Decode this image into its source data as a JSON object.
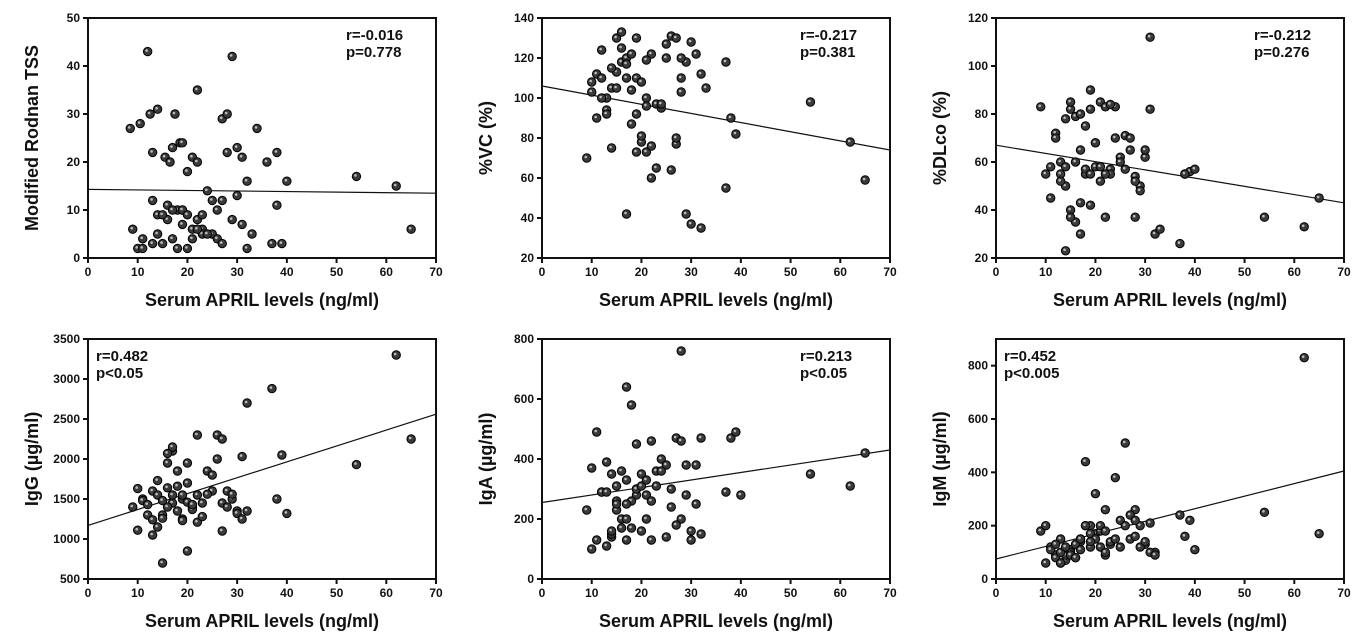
{
  "chart_data": [
    {
      "type": "scatter",
      "xlabel": "Serum APRIL levels (ng/ml)",
      "ylabel": "Modified Rodnan TSS",
      "xlim": [
        0,
        70
      ],
      "ylim": [
        0,
        50
      ],
      "xticks": [
        "0",
        "10",
        "20",
        "30",
        "40",
        "50",
        "60",
        "70"
      ],
      "yticks": [
        "0",
        "10",
        "20",
        "30",
        "40",
        "50"
      ],
      "annotation": [
        "r=-0.016",
        "p=0.778"
      ],
      "annotation_position": "top-right",
      "fit_line": [
        [
          0,
          14.3
        ],
        [
          70,
          13.5
        ]
      ],
      "x": [
        8.5,
        10.5,
        12.5,
        14,
        15.5,
        16.5,
        17.5,
        18.5,
        19,
        20,
        21,
        22,
        23,
        24,
        25,
        26,
        27,
        28,
        29,
        30,
        31,
        32,
        33,
        34,
        36,
        38,
        40,
        54,
        62,
        65,
        9,
        11,
        13,
        14,
        15,
        16,
        17,
        18,
        19,
        20,
        21,
        22,
        23,
        13,
        14,
        16,
        18,
        19,
        20,
        21,
        22,
        24,
        26,
        27,
        28,
        29,
        30,
        31,
        32,
        37,
        38,
        39,
        12,
        13,
        17,
        22,
        27,
        23,
        25,
        10,
        11,
        15,
        17,
        19
      ],
      "y": [
        27,
        28,
        30,
        31,
        21,
        20,
        30,
        24,
        10,
        18,
        21,
        20,
        6,
        14,
        5,
        10,
        29,
        30,
        8,
        23,
        21,
        16,
        5,
        27,
        20,
        22,
        16,
        17,
        15,
        6,
        6,
        4,
        3,
        5,
        3,
        8,
        4,
        2,
        7,
        2,
        4,
        8,
        5,
        12,
        9,
        11,
        10,
        10,
        9,
        6,
        6,
        5,
        4,
        3,
        22,
        42,
        13,
        7,
        2,
        3,
        11,
        3,
        43,
        22,
        23,
        35,
        12,
        9,
        12,
        2,
        2,
        9,
        10,
        24
      ]
    },
    {
      "type": "scatter",
      "xlabel": "Serum APRIL levels (ng/ml)",
      "ylabel": "%VC (%)",
      "xlim": [
        0,
        70
      ],
      "ylim": [
        20,
        140
      ],
      "xticks": [
        "0",
        "10",
        "20",
        "30",
        "40",
        "50",
        "60",
        "70"
      ],
      "yticks": [
        "20",
        "40",
        "60",
        "80",
        "100",
        "120",
        "140"
      ],
      "annotation": [
        "r=-0.217",
        "p=0.381"
      ],
      "annotation_position": "top-right",
      "fit_line": [
        [
          0,
          106
        ],
        [
          70,
          74
        ]
      ],
      "x": [
        9,
        10,
        11,
        12,
        13,
        14,
        15,
        16,
        17,
        18,
        19,
        20,
        21,
        22,
        23,
        24,
        25,
        26,
        27,
        28,
        29,
        30,
        31,
        32,
        37,
        38,
        39,
        54,
        62,
        65,
        10,
        12,
        13,
        14,
        15,
        16,
        17,
        18,
        19,
        20,
        21,
        22,
        23,
        24,
        25,
        26,
        27,
        28,
        12,
        13,
        14,
        15,
        16,
        17,
        18,
        19,
        20,
        21,
        22,
        28,
        29,
        30,
        32,
        37,
        11,
        17,
        19,
        21,
        27,
        33
      ],
      "y": [
        70,
        108,
        112,
        110,
        94,
        105,
        113,
        118,
        120,
        122,
        110,
        108,
        100,
        122,
        97,
        95,
        120,
        131,
        130,
        110,
        118,
        128,
        122,
        112,
        55,
        90,
        82,
        98,
        78,
        59,
        103,
        124,
        100,
        75,
        105,
        125,
        110,
        87,
        92,
        78,
        73,
        60,
        65,
        97,
        127,
        64,
        77,
        120,
        100,
        92,
        115,
        130,
        133,
        117,
        104,
        73,
        81,
        96,
        76,
        103,
        42,
        37,
        35,
        118,
        90,
        42,
        130,
        119,
        80,
        105
      ],
      "_note": ""
    },
    {
      "type": "scatter",
      "xlabel": "Serum APRIL levels (ng/ml)",
      "ylabel": "%DLco (%)",
      "xlim": [
        0,
        70
      ],
      "ylim": [
        20,
        120
      ],
      "xticks": [
        "0",
        "10",
        "20",
        "30",
        "40",
        "50",
        "60",
        "70"
      ],
      "yticks": [
        "20",
        "40",
        "60",
        "80",
        "100",
        "120"
      ],
      "annotation": [
        "r=-0.212",
        "p=0.276"
      ],
      "annotation_position": "top-right",
      "fit_line": [
        [
          0,
          67
        ],
        [
          70,
          43
        ]
      ],
      "x": [
        9,
        10,
        11,
        12,
        13,
        14,
        15,
        16,
        17,
        18,
        19,
        20,
        21,
        22,
        23,
        24,
        25,
        26,
        27,
        28,
        29,
        30,
        31,
        32,
        37,
        38,
        39,
        54,
        62,
        65,
        11,
        13,
        14,
        15,
        16,
        17,
        18,
        19,
        20,
        21,
        22,
        23,
        24,
        25,
        26,
        27,
        28,
        29,
        12,
        13,
        14,
        15,
        16,
        17,
        18,
        19,
        20,
        21,
        22,
        30,
        31,
        33,
        38,
        40,
        14,
        15,
        17,
        28,
        19,
        23
      ],
      "y": [
        83,
        55,
        58,
        72,
        60,
        78,
        82,
        79,
        65,
        55,
        90,
        58,
        85,
        83,
        57,
        83,
        62,
        71,
        70,
        54,
        50,
        62,
        112,
        30,
        26,
        55,
        56,
        37,
        33,
        45,
        45,
        55,
        50,
        40,
        35,
        43,
        57,
        55,
        68,
        52,
        37,
        55,
        70,
        60,
        57,
        65,
        52,
        48,
        70,
        52,
        58,
        37,
        60,
        80,
        75,
        82,
        68,
        58,
        55,
        65,
        82,
        32,
        55,
        57,
        23,
        85,
        30,
        37,
        42,
        84
      ]
    },
    {
      "type": "scatter",
      "xlabel": "Serum APRIL levels (ng/ml)",
      "ylabel": "IgG (µg/ml)",
      "xlim": [
        0,
        70
      ],
      "ylim": [
        500,
        3500
      ],
      "xticks": [
        "0",
        "10",
        "20",
        "30",
        "40",
        "50",
        "60",
        "70"
      ],
      "yticks": [
        "500",
        "1000",
        "1500",
        "2000",
        "2500",
        "3000",
        "3500"
      ],
      "annotation": [
        "r=0.482",
        "p<0.05"
      ],
      "annotation_position": "top-left",
      "fit_line": [
        [
          0,
          1170
        ],
        [
          70,
          2560
        ]
      ],
      "x": [
        9,
        10,
        11,
        12,
        13,
        14,
        15,
        16,
        17,
        18,
        19,
        20,
        21,
        22,
        23,
        24,
        25,
        26,
        27,
        28,
        29,
        30,
        31,
        32,
        37,
        38,
        39,
        54,
        62,
        65,
        10,
        11,
        13,
        14,
        15,
        16,
        17,
        18,
        19,
        20,
        21,
        22,
        23,
        24,
        25,
        26,
        27,
        28,
        12,
        13,
        14,
        15,
        16,
        17,
        18,
        19,
        20,
        21,
        22,
        29,
        30,
        31,
        32,
        40,
        15,
        17,
        20,
        27,
        19,
        16
      ],
      "y": [
        1400,
        1630,
        1500,
        1300,
        1600,
        1550,
        1300,
        1950,
        2100,
        1850,
        1500,
        1700,
        1400,
        1550,
        1450,
        1850,
        1600,
        2300,
        1450,
        1600,
        1500,
        1350,
        2030,
        2700,
        2880,
        1500,
        2050,
        1930,
        3300,
        2250,
        1110,
        1480,
        1050,
        1730,
        1480,
        1640,
        1450,
        1350,
        1550,
        1460,
        1370,
        1210,
        1280,
        1560,
        1800,
        2000,
        2250,
        1400,
        1430,
        1240,
        1150,
        1260,
        1400,
        1550,
        1660,
        1250,
        1950,
        1430,
        2300,
        1560,
        1320,
        1250,
        1350,
        1320,
        700,
        2150,
        850,
        1100,
        1230,
        2070
      ]
    },
    {
      "type": "scatter",
      "xlabel": "Serum APRIL levels (ng/ml)",
      "ylabel": "IgA (µg/ml)",
      "xlim": [
        0,
        70
      ],
      "ylim": [
        0,
        800
      ],
      "xticks": [
        "0",
        "10",
        "20",
        "30",
        "40",
        "50",
        "60",
        "70"
      ],
      "yticks": [
        "0",
        "200",
        "400",
        "600",
        "800"
      ],
      "annotation": [
        "r=0.213",
        "p<0.05"
      ],
      "annotation_position": "top-right",
      "fit_line": [
        [
          0,
          255
        ],
        [
          70,
          430
        ]
      ],
      "x": [
        9,
        10,
        11,
        12,
        13,
        14,
        15,
        16,
        17,
        18,
        19,
        20,
        21,
        22,
        23,
        24,
        25,
        26,
        27,
        28,
        29,
        30,
        31,
        32,
        37,
        38,
        39,
        54,
        62,
        65,
        10,
        11,
        13,
        14,
        15,
        16,
        17,
        18,
        19,
        20,
        21,
        22,
        23,
        24,
        25,
        26,
        27,
        28,
        12,
        13,
        14,
        15,
        16,
        17,
        18,
        19,
        20,
        21,
        22,
        29,
        30,
        31,
        32,
        40,
        14,
        17,
        17,
        28,
        19,
        15
      ],
      "y": [
        230,
        370,
        490,
        290,
        390,
        350,
        260,
        200,
        640,
        580,
        300,
        350,
        280,
        460,
        310,
        400,
        380,
        240,
        470,
        200,
        380,
        160,
        380,
        470,
        290,
        470,
        490,
        350,
        310,
        420,
        100,
        130,
        110,
        140,
        230,
        170,
        130,
        170,
        280,
        160,
        200,
        130,
        360,
        360,
        140,
        300,
        180,
        460,
        290,
        290,
        150,
        250,
        360,
        200,
        260,
        300,
        310,
        330,
        260,
        280,
        130,
        250,
        150,
        280,
        160,
        330,
        250,
        760,
        450,
        310
      ]
    },
    {
      "type": "scatter",
      "xlabel": "Serum APRIL levels (ng/ml)",
      "ylabel": "IgM (µg/ml)",
      "xlim": [
        0,
        70
      ],
      "ylim": [
        0,
        900
      ],
      "xticks": [
        "0",
        "10",
        "20",
        "30",
        "40",
        "50",
        "60",
        "70"
      ],
      "yticks": [
        "0",
        "200",
        "400",
        "600",
        "800"
      ],
      "annotation": [
        "r=0.452",
        "p<0.005"
      ],
      "annotation_position": "top-left",
      "fit_line": [
        [
          0,
          75
        ],
        [
          70,
          405
        ]
      ],
      "x": [
        9,
        10,
        11,
        12,
        13,
        14,
        15,
        16,
        17,
        18,
        19,
        20,
        21,
        22,
        23,
        24,
        25,
        26,
        27,
        28,
        29,
        30,
        31,
        32,
        37,
        38,
        39,
        54,
        62,
        65,
        10,
        11,
        12,
        13,
        14,
        15,
        16,
        17,
        18,
        19,
        20,
        21,
        22,
        23,
        24,
        25,
        26,
        27,
        28,
        12,
        13,
        14,
        15,
        16,
        17,
        18,
        19,
        20,
        21,
        22,
        29,
        30,
        31,
        32,
        40,
        13,
        17,
        19,
        28,
        22
      ],
      "y": [
        180,
        60,
        120,
        90,
        150,
        70,
        110,
        80,
        140,
        440,
        200,
        170,
        120,
        260,
        130,
        380,
        220,
        510,
        150,
        260,
        200,
        130,
        210,
        100,
        240,
        160,
        220,
        250,
        830,
        170,
        200,
        110,
        130,
        60,
        90,
        100,
        130,
        150,
        200,
        170,
        150,
        180,
        90,
        140,
        150,
        120,
        200,
        240,
        220,
        80,
        100,
        120,
        90,
        80,
        110,
        200,
        120,
        320,
        200,
        180,
        120,
        140,
        100,
        90,
        110,
        60,
        150,
        140,
        160,
        100
      ]
    }
  ]
}
